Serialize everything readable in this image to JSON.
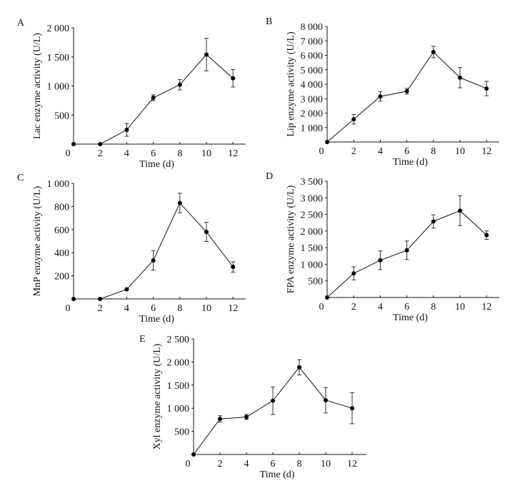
{
  "chart_data": [
    {
      "panel": "A",
      "type": "line",
      "xlabel": "Time (d)",
      "ylabel": "Lac enzyme activity (U/L)",
      "xlim": [
        0,
        13
      ],
      "ylim": [
        0,
        2000
      ],
      "xticks": [
        0,
        2,
        4,
        6,
        8,
        10,
        12
      ],
      "yticks": [
        {
          "value": 500,
          "label": "500"
        },
        {
          "value": 1000,
          "label": "1 000"
        },
        {
          "value": 1500,
          "label": "1 500"
        },
        {
          "value": 2000,
          "label": "2 000"
        }
      ],
      "x": [
        0,
        2,
        4,
        6,
        8,
        10,
        12
      ],
      "y": [
        0,
        0,
        245,
        797,
        1022,
        1540,
        1132
      ],
      "err": [
        0,
        0,
        110,
        50,
        90,
        280,
        150
      ]
    },
    {
      "panel": "B",
      "type": "line",
      "xlabel": "Time (d)",
      "ylabel": "Lip enzyme activity (U/L)",
      "xlim": [
        0,
        13
      ],
      "ylim": [
        0,
        8000
      ],
      "xticks": [
        0,
        2,
        4,
        6,
        8,
        10,
        12
      ],
      "yticks": [
        {
          "value": 1000,
          "label": "1 000"
        },
        {
          "value": 2000,
          "label": "2 000"
        },
        {
          "value": 3000,
          "label": "3 000"
        },
        {
          "value": 4000,
          "label": "4 000"
        },
        {
          "value": 5000,
          "label": "5 000"
        },
        {
          "value": 6000,
          "label": "6 000"
        },
        {
          "value": 7000,
          "label": "7 000"
        },
        {
          "value": 8000,
          "label": "8 000"
        }
      ],
      "x": [
        0,
        2,
        4,
        6,
        8,
        10,
        12
      ],
      "y": [
        0,
        1570,
        3150,
        3510,
        6230,
        4450,
        3700
      ],
      "err": [
        0,
        330,
        330,
        200,
        400,
        700,
        500
      ]
    },
    {
      "panel": "C",
      "type": "line",
      "xlabel": "Time (d)",
      "ylabel": "MnP enzyme activity (U/L)",
      "xlim": [
        0,
        13
      ],
      "ylim": [
        0,
        1000
      ],
      "xticks": [
        0,
        2,
        4,
        6,
        8,
        10,
        12
      ],
      "yticks": [
        {
          "value": 200,
          "label": "200"
        },
        {
          "value": 400,
          "label": "400"
        },
        {
          "value": 600,
          "label": "600"
        },
        {
          "value": 800,
          "label": "800"
        },
        {
          "value": 1000,
          "label": "1 000"
        }
      ],
      "x": [
        0,
        2,
        4,
        6,
        8,
        10,
        12
      ],
      "y": [
        0,
        0,
        83,
        333,
        830,
        580,
        277
      ],
      "err": [
        0,
        0,
        0,
        85,
        85,
        83,
        45
      ]
    },
    {
      "panel": "D",
      "type": "line",
      "xlabel": "Time (d)",
      "ylabel": "FPA enzyme activity (U/L)",
      "xlim": [
        0,
        13
      ],
      "ylim": [
        0,
        3500
      ],
      "xticks": [
        0,
        2,
        4,
        6,
        8,
        10,
        12
      ],
      "yticks": [
        {
          "value": 500,
          "label": "500"
        },
        {
          "value": 1000,
          "label": "1 000"
        },
        {
          "value": 1500,
          "label": "1 500"
        },
        {
          "value": 2000,
          "label": "2 000"
        },
        {
          "value": 2500,
          "label": "2 500"
        },
        {
          "value": 3000,
          "label": "3 000"
        },
        {
          "value": 3500,
          "label": "3 500"
        }
      ],
      "x": [
        0,
        2,
        4,
        6,
        8,
        10,
        12
      ],
      "y": [
        0,
        725,
        1120,
        1420,
        2290,
        2615,
        1880
      ],
      "err": [
        0,
        195,
        280,
        280,
        200,
        450,
        130
      ]
    },
    {
      "panel": "E",
      "type": "line",
      "xlabel": "Time (d)",
      "ylabel": "Xyl enzyme activity (U/L)",
      "xlim": [
        0,
        13
      ],
      "ylim": [
        0,
        2500
      ],
      "xticks": [
        0,
        2,
        4,
        6,
        8,
        10,
        12
      ],
      "yticks": [
        {
          "value": 500,
          "label": "500"
        },
        {
          "value": 1000,
          "label": "1 000"
        },
        {
          "value": 1500,
          "label": "1 500"
        },
        {
          "value": 2000,
          "label": "2 000"
        },
        {
          "value": 2500,
          "label": "2 500"
        }
      ],
      "x": [
        0,
        2,
        4,
        6,
        8,
        10,
        12
      ],
      "y": [
        0,
        768,
        810,
        1163,
        1885,
        1173,
        1000
      ],
      "err": [
        0,
        70,
        55,
        300,
        165,
        275,
        335
      ]
    }
  ],
  "colors": {
    "line": "#111111",
    "marker": "#000000",
    "errorbar": "#333333"
  }
}
